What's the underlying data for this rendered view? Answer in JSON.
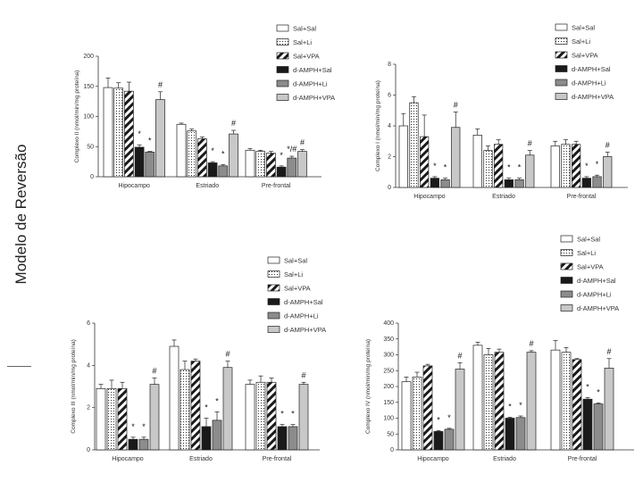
{
  "page": {
    "side_title": "Modelo de Reversão"
  },
  "legend_labels": [
    "Sal+Sal",
    "Sal+Li",
    "Sal+VPA",
    "d-AMPH+Sal",
    "d-AMPH+Li",
    "d-AMPH+VPA"
  ],
  "series_styles": [
    {
      "fill": "#ffffff",
      "pattern": "none"
    },
    {
      "fill": "#ffffff",
      "pattern": "dots"
    },
    {
      "fill": "#ffffff",
      "pattern": "diag"
    },
    {
      "fill": "#1a1a1a",
      "pattern": "none"
    },
    {
      "fill": "#8c8c8c",
      "pattern": "none"
    },
    {
      "fill": "#c8c8c8",
      "pattern": "none"
    }
  ],
  "chart_data": [
    {
      "type": "bar",
      "title": "Complexo II",
      "ylabel": "Complexo II (nmol/min/mg proteína)",
      "ylim": [
        0,
        200
      ],
      "yticks": [
        "0",
        "50",
        "100",
        "150",
        "200"
      ],
      "categories": [
        "Hipocampo",
        "Estriado",
        "Pre-frontal"
      ],
      "series": [
        {
          "name": "Sal+Sal",
          "values": [
            148,
            87,
            44
          ],
          "errors": [
            16,
            2,
            3
          ]
        },
        {
          "name": "Sal+Li",
          "values": [
            147,
            76,
            42
          ],
          "errors": [
            9,
            3,
            2
          ]
        },
        {
          "name": "Sal+VPA",
          "values": [
            142,
            63,
            39
          ],
          "errors": [
            15,
            3,
            3
          ]
        },
        {
          "name": "d-AMPH+Sal",
          "values": [
            49,
            23,
            16
          ],
          "errors": [
            4,
            2,
            2
          ]
        },
        {
          "name": "d-AMPH+Li",
          "values": [
            41,
            18,
            31
          ],
          "errors": [
            1,
            2,
            3
          ]
        },
        {
          "name": "d-AMPH+VPA",
          "values": [
            128,
            71,
            42
          ],
          "errors": [
            13,
            6,
            3
          ]
        }
      ],
      "annotations": [
        {
          "group": 0,
          "series": 3,
          "text": "*"
        },
        {
          "group": 0,
          "series": 4,
          "text": "*"
        },
        {
          "group": 0,
          "series": 5,
          "text": "#"
        },
        {
          "group": 1,
          "series": 3,
          "text": "*"
        },
        {
          "group": 1,
          "series": 4,
          "text": "*"
        },
        {
          "group": 1,
          "series": 5,
          "text": "#"
        },
        {
          "group": 2,
          "series": 3,
          "text": "*"
        },
        {
          "group": 2,
          "series": 4,
          "text": "*/#"
        },
        {
          "group": 2,
          "series": 5,
          "text": "#"
        }
      ]
    },
    {
      "type": "bar",
      "title": "Complexo I",
      "ylabel": "Complexo I (nmol/min/mg proteína)",
      "ylim": [
        0,
        8
      ],
      "yticks": [
        "0",
        "2",
        "4",
        "6",
        "8"
      ],
      "categories": [
        "Hipocampo",
        "Estriado",
        "Pre-frontal"
      ],
      "series": [
        {
          "name": "Sal+Sal",
          "values": [
            4.0,
            3.4,
            2.7
          ],
          "errors": [
            0.8,
            0.4,
            0.3
          ]
        },
        {
          "name": "Sal+Li",
          "values": [
            5.5,
            2.4,
            2.8
          ],
          "errors": [
            0.4,
            0.3,
            0.3
          ]
        },
        {
          "name": "Sal+VPA",
          "values": [
            3.3,
            2.8,
            2.8
          ],
          "errors": [
            1.4,
            0.3,
            0.2
          ]
        },
        {
          "name": "d-AMPH+Sal",
          "values": [
            0.6,
            0.5,
            0.6
          ],
          "errors": [
            0.1,
            0.1,
            0.1
          ]
        },
        {
          "name": "d-AMPH+Li",
          "values": [
            0.5,
            0.5,
            0.7
          ],
          "errors": [
            0.1,
            0.1,
            0.1
          ]
        },
        {
          "name": "d-AMPH+VPA",
          "values": [
            3.9,
            2.1,
            2.0
          ],
          "errors": [
            1.0,
            0.3,
            0.3
          ]
        }
      ],
      "annotations": [
        {
          "group": 0,
          "series": 3,
          "text": "*"
        },
        {
          "group": 0,
          "series": 4,
          "text": "*"
        },
        {
          "group": 0,
          "series": 5,
          "text": "#"
        },
        {
          "group": 1,
          "series": 3,
          "text": "*"
        },
        {
          "group": 1,
          "series": 4,
          "text": "*"
        },
        {
          "group": 1,
          "series": 5,
          "text": "#"
        },
        {
          "group": 2,
          "series": 3,
          "text": "*"
        },
        {
          "group": 2,
          "series": 4,
          "text": "*"
        },
        {
          "group": 2,
          "series": 5,
          "text": "#"
        }
      ]
    },
    {
      "type": "bar",
      "title": "Complexo III",
      "ylabel": "Complexo III (nmol/min/mg proteína)",
      "ylim": [
        0,
        6
      ],
      "yticks": [
        "0",
        "2",
        "4",
        "6"
      ],
      "categories": [
        "Hipocampo",
        "Estriado",
        "Pre-frontal"
      ],
      "series": [
        {
          "name": "Sal+Sal",
          "values": [
            2.9,
            4.9,
            3.1
          ],
          "errors": [
            0.2,
            0.3,
            0.2
          ]
        },
        {
          "name": "Sal+Li",
          "values": [
            2.9,
            3.8,
            3.2
          ],
          "errors": [
            0.4,
            0.4,
            0.3
          ]
        },
        {
          "name": "Sal+VPA",
          "values": [
            2.9,
            4.2,
            3.2
          ],
          "errors": [
            0.3,
            0.1,
            0.2
          ]
        },
        {
          "name": "d-AMPH+Sal",
          "values": [
            0.5,
            1.1,
            1.1
          ],
          "errors": [
            0.1,
            0.4,
            0.1
          ]
        },
        {
          "name": "d-AMPH+Li",
          "values": [
            0.5,
            1.4,
            1.1
          ],
          "errors": [
            0.1,
            0.4,
            0.1
          ]
        },
        {
          "name": "d-AMPH+VPA",
          "values": [
            3.1,
            3.9,
            3.1
          ],
          "errors": [
            0.3,
            0.3,
            0.1
          ]
        }
      ],
      "annotations": [
        {
          "group": 0,
          "series": 3,
          "text": "*"
        },
        {
          "group": 0,
          "series": 4,
          "text": "*"
        },
        {
          "group": 0,
          "series": 5,
          "text": "#"
        },
        {
          "group": 1,
          "series": 3,
          "text": "*"
        },
        {
          "group": 1,
          "series": 4,
          "text": "*"
        },
        {
          "group": 1,
          "series": 5,
          "text": "#"
        },
        {
          "group": 2,
          "series": 3,
          "text": "*"
        },
        {
          "group": 2,
          "series": 4,
          "text": "*"
        },
        {
          "group": 2,
          "series": 5,
          "text": "#"
        }
      ]
    },
    {
      "type": "bar",
      "title": "Complexo IV",
      "ylabel": "Complexo IV (nmol/min/mg proteína)",
      "ylim": [
        0,
        400
      ],
      "yticks": [
        "0",
        "50",
        "100",
        "150",
        "200",
        "250",
        "300",
        "350",
        "400"
      ],
      "categories": [
        "Hipocampo",
        "Estriado",
        "Pre-frontal"
      ],
      "series": [
        {
          "name": "Sal+Sal",
          "values": [
            215,
            330,
            315
          ],
          "errors": [
            15,
            10,
            30
          ]
        },
        {
          "name": "Sal+Li",
          "values": [
            230,
            300,
            308
          ],
          "errors": [
            15,
            20,
            15
          ]
        },
        {
          "name": "Sal+VPA",
          "values": [
            265,
            308,
            285
          ],
          "errors": [
            5,
            10,
            3
          ]
        },
        {
          "name": "d-AMPH+Sal",
          "values": [
            58,
            100,
            160
          ],
          "errors": [
            3,
            3,
            5
          ]
        },
        {
          "name": "d-AMPH+Li",
          "values": [
            65,
            102,
            145
          ],
          "errors": [
            3,
            5,
            3
          ]
        },
        {
          "name": "d-AMPH+VPA",
          "values": [
            255,
            308,
            258
          ],
          "errors": [
            20,
            5,
            30
          ]
        }
      ],
      "annotations": [
        {
          "group": 0,
          "series": 3,
          "text": "*"
        },
        {
          "group": 0,
          "series": 4,
          "text": "*"
        },
        {
          "group": 0,
          "series": 5,
          "text": "#"
        },
        {
          "group": 1,
          "series": 3,
          "text": "*"
        },
        {
          "group": 1,
          "series": 4,
          "text": "*"
        },
        {
          "group": 1,
          "series": 5,
          "text": "#"
        },
        {
          "group": 2,
          "series": 3,
          "text": "*"
        },
        {
          "group": 2,
          "series": 4,
          "text": "*"
        },
        {
          "group": 2,
          "series": 5,
          "text": "#"
        }
      ]
    }
  ]
}
